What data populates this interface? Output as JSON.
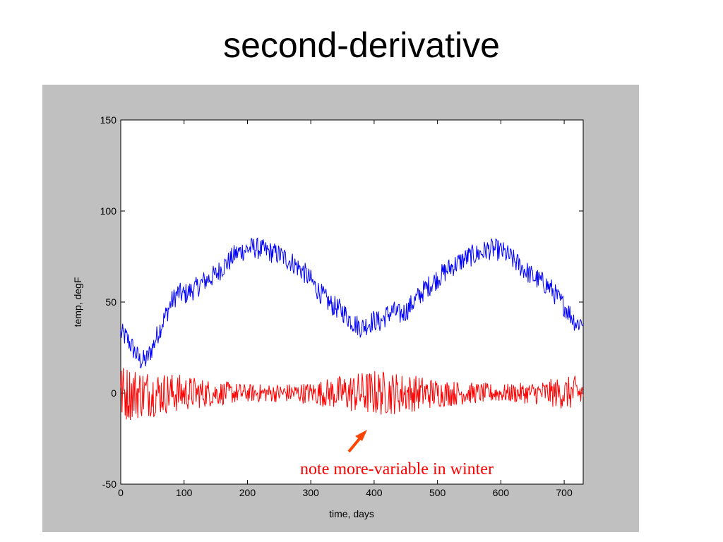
{
  "slide": {
    "title": "second-derivative"
  },
  "chart_data": {
    "type": "line",
    "title": "",
    "xlabel": "time, days",
    "ylabel": "temp, degF",
    "xlim": [
      0,
      730
    ],
    "ylim": [
      -50,
      150
    ],
    "xticks": [
      0,
      100,
      200,
      300,
      400,
      500,
      600,
      700
    ],
    "yticks": [
      -50,
      0,
      50,
      100,
      150
    ],
    "grid": false,
    "legend": "none",
    "series": [
      {
        "color": "#0000ff",
        "step": 10,
        "x": [
          0,
          10,
          20,
          30,
          40,
          50,
          60,
          70,
          80,
          90,
          100,
          110,
          120,
          130,
          140,
          150,
          160,
          170,
          180,
          190,
          200,
          210,
          220,
          230,
          240,
          250,
          260,
          270,
          280,
          290,
          300,
          310,
          320,
          330,
          340,
          350,
          360,
          370,
          380,
          390,
          400,
          410,
          420,
          430,
          440,
          450,
          460,
          470,
          480,
          490,
          500,
          510,
          520,
          530,
          540,
          550,
          560,
          570,
          580,
          590,
          600,
          610,
          620,
          630,
          640,
          650,
          660,
          670,
          680,
          690,
          700,
          710,
          720,
          730
        ],
        "y": [
          33,
          30,
          24,
          18,
          18,
          25,
          34,
          42,
          50,
          55,
          54,
          56,
          58,
          61,
          63,
          65,
          69,
          72,
          76,
          78,
          79,
          80,
          79,
          78,
          77,
          76,
          74,
          72,
          69,
          66,
          62,
          57,
          53,
          49,
          47,
          45,
          41,
          38,
          36,
          38,
          40,
          39,
          43,
          45,
          43,
          45,
          49,
          53,
          57,
          60,
          63,
          66,
          69,
          71,
          73,
          75,
          76,
          77,
          79,
          79,
          78,
          76,
          73,
          70,
          67,
          64,
          62,
          60,
          57,
          52,
          48,
          43,
          38,
          40
        ],
        "noise": 6
      },
      {
        "color": "#ff0000",
        "step": 2,
        "envelope_x": [
          0,
          50,
          100,
          150,
          200,
          250,
          300,
          350,
          400,
          450,
          500,
          550,
          600,
          650,
          700,
          730
        ],
        "envelope_amp": [
          16,
          13,
          10,
          7,
          5,
          5,
          6,
          10,
          13,
          11,
          8,
          6,
          5,
          6,
          9,
          10
        ],
        "center": 0
      }
    ],
    "annotations": [
      {
        "text": "note more-variable in winter",
        "color": "#ff0000",
        "arrow_color": "#ff4500"
      }
    ]
  }
}
